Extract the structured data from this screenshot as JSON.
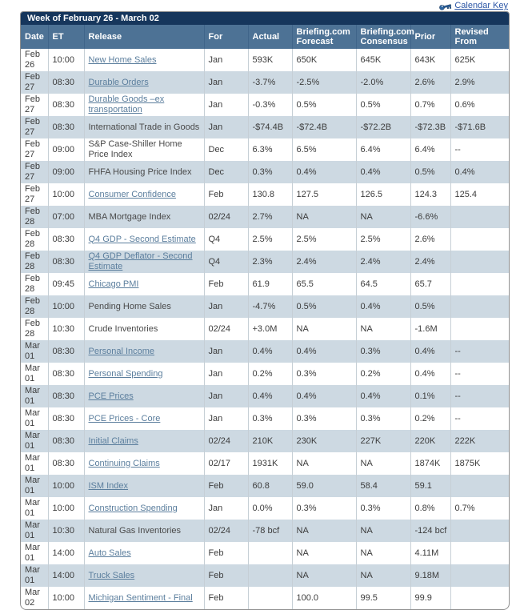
{
  "calendar_key": {
    "label": "Calendar Key"
  },
  "colors": {
    "title-bar": "#16365c",
    "header-bg": "#4d7295",
    "header-sep": "#3f648a",
    "stripe": "#cdd9e2",
    "cell-sep": "#c6cfd6",
    "link": "#5b7e9d",
    "key-link": "#2a55a5",
    "border": "#8f8f8f",
    "text": "#3c3c3c"
  },
  "table": {
    "title": "Week of February 26 - March 02",
    "columns": [
      "Date",
      "ET",
      "Release",
      "For",
      "Actual",
      "Briefing.com Forecast",
      "Briefing.com Consensus",
      "Prior",
      "Revised From"
    ],
    "rows": [
      {
        "date": "Feb 26",
        "et": "10:00",
        "release": "New Home Sales",
        "link": true,
        "for": "Jan",
        "actual": "593K",
        "forecast": "650K",
        "consensus": "645K",
        "prior": "643K",
        "revised": "625K"
      },
      {
        "date": "Feb 27",
        "et": "08:30",
        "release": "Durable Orders",
        "link": true,
        "for": "Jan",
        "actual": "-3.7%",
        "forecast": "-2.5%",
        "consensus": "-2.0%",
        "prior": "2.6%",
        "revised": "2.9%"
      },
      {
        "date": "Feb 27",
        "et": "08:30",
        "release": "Durable Goods –ex transportation",
        "link": true,
        "for": "Jan",
        "actual": "-0.3%",
        "forecast": "0.5%",
        "consensus": "0.5%",
        "prior": "0.7%",
        "revised": "0.6%"
      },
      {
        "date": "Feb 27",
        "et": "08:30",
        "release": "International Trade in Goods",
        "link": false,
        "for": "Jan",
        "actual": "-$74.4B",
        "forecast": "-$72.4B",
        "consensus": "-$72.2B",
        "prior": "-$72.3B",
        "revised": "-$71.6B"
      },
      {
        "date": "Feb 27",
        "et": "09:00",
        "release": "S&P Case-Shiller Home Price Index",
        "link": false,
        "for": "Dec",
        "actual": "6.3%",
        "forecast": "6.5%",
        "consensus": "6.4%",
        "prior": "6.4%",
        "revised": "--"
      },
      {
        "date": "Feb 27",
        "et": "09:00",
        "release": "FHFA Housing Price Index",
        "link": false,
        "for": "Dec",
        "actual": "0.3%",
        "forecast": "0.4%",
        "consensus": "0.4%",
        "prior": "0.5%",
        "revised": "0.4%"
      },
      {
        "date": "Feb 27",
        "et": "10:00",
        "release": "Consumer Confidence",
        "link": true,
        "for": "Feb",
        "actual": "130.8",
        "forecast": "127.5",
        "consensus": "126.5",
        "prior": "124.3",
        "revised": "125.4"
      },
      {
        "date": "Feb 28",
        "et": "07:00",
        "release": "MBA Mortgage Index",
        "link": false,
        "for": "02/24",
        "actual": "2.7%",
        "forecast": "NA",
        "consensus": "NA",
        "prior": "-6.6%",
        "revised": ""
      },
      {
        "date": "Feb 28",
        "et": "08:30",
        "release": "Q4 GDP - Second Estimate",
        "link": true,
        "for": "Q4",
        "actual": "2.5%",
        "forecast": "2.5%",
        "consensus": "2.5%",
        "prior": "2.6%",
        "revised": ""
      },
      {
        "date": "Feb 28",
        "et": "08:30",
        "release": "Q4 GDP Deflator - Second Estimate",
        "link": true,
        "for": "Q4",
        "actual": "2.3%",
        "forecast": "2.4%",
        "consensus": "2.4%",
        "prior": "2.4%",
        "revised": ""
      },
      {
        "date": "Feb 28",
        "et": "09:45",
        "release": "Chicago PMI",
        "link": true,
        "for": "Feb",
        "actual": "61.9",
        "forecast": "65.5",
        "consensus": "64.5",
        "prior": "65.7",
        "revised": ""
      },
      {
        "date": "Feb 28",
        "et": "10:00",
        "release": "Pending Home Sales",
        "link": false,
        "for": "Jan",
        "actual": "-4.7%",
        "forecast": "0.5%",
        "consensus": "0.4%",
        "prior": "0.5%",
        "revised": ""
      },
      {
        "date": "Feb 28",
        "et": "10:30",
        "release": "Crude Inventories",
        "link": false,
        "for": "02/24",
        "actual": "+3.0M",
        "forecast": "NA",
        "consensus": "NA",
        "prior": "-1.6M",
        "revised": ""
      },
      {
        "date": "Mar 01",
        "et": "08:30",
        "release": "Personal Income",
        "link": true,
        "for": "Jan",
        "actual": "0.4%",
        "forecast": "0.4%",
        "consensus": "0.3%",
        "prior": "0.4%",
        "revised": "--"
      },
      {
        "date": "Mar 01",
        "et": "08:30",
        "release": "Personal Spending",
        "link": true,
        "for": "Jan",
        "actual": "0.2%",
        "forecast": "0.3%",
        "consensus": "0.2%",
        "prior": "0.4%",
        "revised": "--"
      },
      {
        "date": "Mar 01",
        "et": "08:30",
        "release": "PCE Prices",
        "link": true,
        "for": "Jan",
        "actual": "0.4%",
        "forecast": "0.4%",
        "consensus": "0.4%",
        "prior": "0.1%",
        "revised": "--"
      },
      {
        "date": "Mar 01",
        "et": "08:30",
        "release": "PCE Prices - Core",
        "link": true,
        "for": "Jan",
        "actual": "0.3%",
        "forecast": "0.3%",
        "consensus": "0.3%",
        "prior": "0.2%",
        "revised": "--"
      },
      {
        "date": "Mar 01",
        "et": "08:30",
        "release": "Initial Claims",
        "link": true,
        "for": "02/24",
        "actual": "210K",
        "forecast": "230K",
        "consensus": "227K",
        "prior": "220K",
        "revised": "222K"
      },
      {
        "date": "Mar 01",
        "et": "08:30",
        "release": "Continuing Claims",
        "link": true,
        "for": "02/17",
        "actual": "1931K",
        "forecast": "NA",
        "consensus": "NA",
        "prior": "1874K",
        "revised": "1875K"
      },
      {
        "date": "Mar 01",
        "et": "10:00",
        "release": "ISM Index",
        "link": true,
        "for": "Feb",
        "actual": "60.8",
        "forecast": "59.0",
        "consensus": "58.4",
        "prior": "59.1",
        "revised": ""
      },
      {
        "date": "Mar 01",
        "et": "10:00",
        "release": "Construction Spending",
        "link": true,
        "for": "Jan",
        "actual": "0.0%",
        "forecast": "0.3%",
        "consensus": "0.3%",
        "prior": "0.8%",
        "revised": "0.7%"
      },
      {
        "date": "Mar 01",
        "et": "10:30",
        "release": "Natural Gas Inventories",
        "link": false,
        "for": "02/24",
        "actual": "-78 bcf",
        "forecast": "NA",
        "consensus": "NA",
        "prior": "-124 bcf",
        "revised": ""
      },
      {
        "date": "Mar 01",
        "et": "14:00",
        "release": "Auto Sales",
        "link": true,
        "for": "Feb",
        "actual": "",
        "forecast": "NA",
        "consensus": "NA",
        "prior": "4.11M",
        "revised": ""
      },
      {
        "date": "Mar 01",
        "et": "14:00",
        "release": "Truck Sales",
        "link": true,
        "for": "Feb",
        "actual": "",
        "forecast": "NA",
        "consensus": "NA",
        "prior": "9.18M",
        "revised": ""
      },
      {
        "date": "Mar 02",
        "et": "10:00",
        "release": "Michigan Sentiment - Final",
        "link": true,
        "for": "Feb",
        "actual": "",
        "forecast": "100.0",
        "consensus": "99.5",
        "prior": "99.9",
        "revised": ""
      }
    ]
  }
}
